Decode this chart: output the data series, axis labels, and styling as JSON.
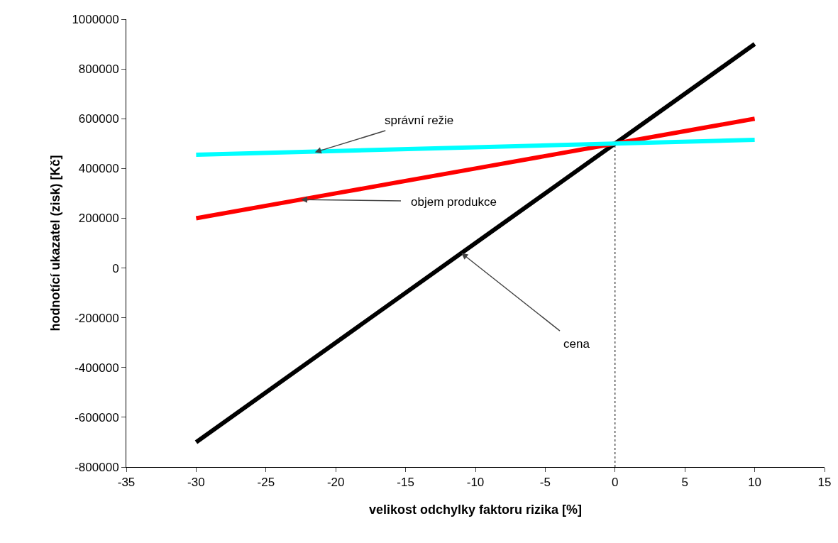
{
  "chart_data": {
    "type": "line",
    "xlabel": "velikost odchylky faktoru rizika [%]",
    "ylabel": "hodnotící ukazatel (zisk) [Kč]",
    "x": [
      -30,
      -20,
      -10,
      0,
      10
    ],
    "series": [
      {
        "color": "#000000",
        "values": [
          -700000,
          -300000,
          100000,
          500000,
          900000
        ]
      },
      {
        "color": "#ff0000",
        "values": [
          200000,
          300000,
          400000,
          500000,
          600000
        ]
      },
      {
        "color": "#00ffff",
        "values": [
          455000,
          470000,
          485000,
          500000,
          515000
        ]
      }
    ],
    "xlim": [
      -35,
      15
    ],
    "xticks": [
      -35,
      -30,
      -25,
      -20,
      -15,
      -10,
      -5,
      0,
      5,
      10,
      15
    ],
    "ylim": [
      -800000,
      1000000
    ],
    "yticks": [
      -800000,
      -600000,
      -400000,
      -200000,
      0,
      200000,
      400000,
      600000,
      800000,
      1000000
    ],
    "grid": false,
    "marker": "none",
    "line_style": "solid",
    "ref_lines": [
      {
        "axis": "x",
        "value": 0,
        "line_style": "dotted",
        "color": "#000000"
      }
    ],
    "annotations": [
      {
        "text": "správní režie",
        "x": -21.5,
        "y": 465000
      },
      {
        "text": "objem produkce",
        "x": -22.5,
        "y": 275000
      },
      {
        "text": "cena",
        "x": -11,
        "y": 60000
      }
    ]
  }
}
